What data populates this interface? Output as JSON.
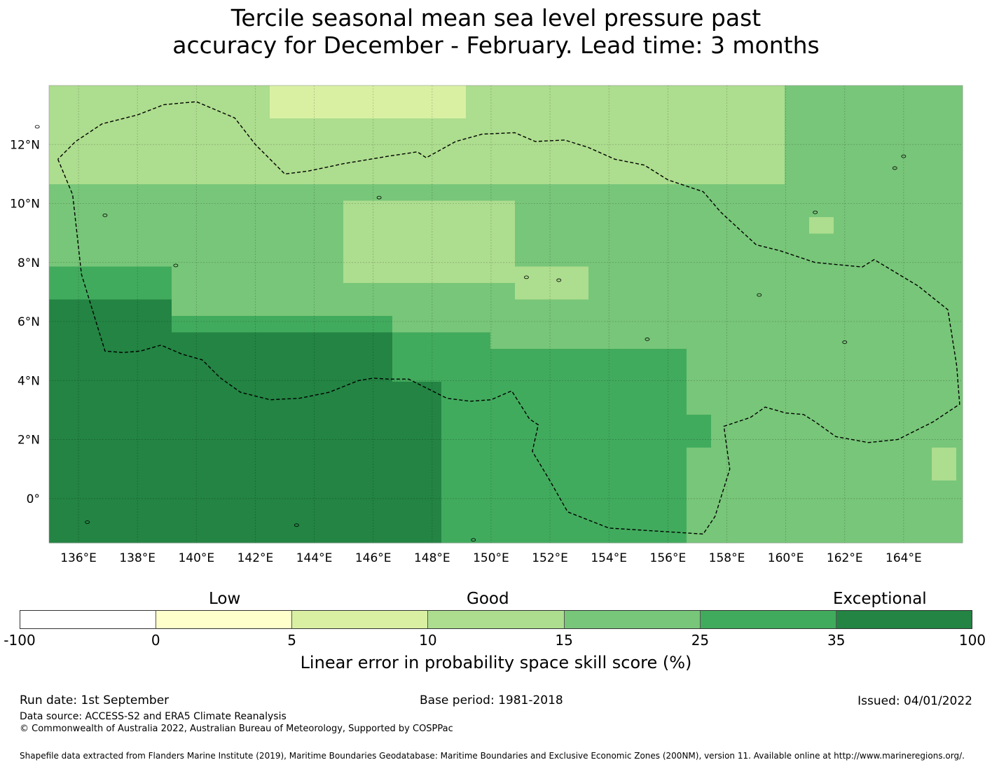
{
  "title": {
    "line1": "Tercile seasonal mean sea level pressure past",
    "line2": "accuracy for December - February. Lead time: 3 months"
  },
  "map": {
    "lon_range": [
      135,
      166
    ],
    "lat_range": [
      -1.5,
      14
    ],
    "x_tick_labels": [
      "136°E",
      "138°E",
      "140°E",
      "142°E",
      "144°E",
      "146°E",
      "148°E",
      "150°E",
      "152°E",
      "154°E",
      "156°E",
      "158°E",
      "160°E",
      "162°E",
      "164°E"
    ],
    "y_tick_labels": [
      "0°",
      "2°N",
      "4°N",
      "6°N",
      "8°N",
      "10°N",
      "12°N"
    ],
    "eez_boundary": [
      [
        135.3,
        11.5
      ],
      [
        135.8,
        10.3
      ],
      [
        136.1,
        7.6
      ],
      [
        136.9,
        5.0
      ],
      [
        137.5,
        4.95
      ],
      [
        138.1,
        5.0
      ],
      [
        138.8,
        5.2
      ],
      [
        139.5,
        4.9
      ],
      [
        140.2,
        4.7
      ],
      [
        140.8,
        4.1
      ],
      [
        141.5,
        3.6
      ],
      [
        142.5,
        3.35
      ],
      [
        143.5,
        3.4
      ],
      [
        144.5,
        3.6
      ],
      [
        145.5,
        4.0
      ],
      [
        146.0,
        4.08
      ],
      [
        146.5,
        4.05
      ],
      [
        147.2,
        4.05
      ],
      [
        147.8,
        3.75
      ],
      [
        148.5,
        3.4
      ],
      [
        149.3,
        3.3
      ],
      [
        150.0,
        3.35
      ],
      [
        150.7,
        3.65
      ],
      [
        151.3,
        2.7
      ],
      [
        151.6,
        2.5
      ],
      [
        151.4,
        1.6
      ],
      [
        152.0,
        0.6
      ],
      [
        152.6,
        -0.45
      ],
      [
        154.0,
        -1.0
      ],
      [
        157.2,
        -1.2
      ],
      [
        157.6,
        -0.6
      ],
      [
        158.1,
        1.0
      ],
      [
        157.9,
        2.45
      ],
      [
        158.8,
        2.75
      ],
      [
        159.3,
        3.1
      ],
      [
        160.0,
        2.9
      ],
      [
        160.6,
        2.85
      ],
      [
        161.0,
        2.6
      ],
      [
        161.7,
        2.1
      ],
      [
        162.8,
        1.9
      ],
      [
        163.8,
        2.0
      ],
      [
        165.0,
        2.6
      ],
      [
        165.9,
        3.2
      ],
      [
        165.8,
        4.5
      ],
      [
        165.5,
        6.4
      ],
      [
        164.5,
        7.2
      ],
      [
        163.0,
        8.1
      ],
      [
        162.6,
        7.85
      ],
      [
        161.0,
        8.0
      ],
      [
        159.8,
        8.4
      ],
      [
        159.0,
        8.6
      ],
      [
        157.8,
        9.7
      ],
      [
        157.2,
        10.4
      ],
      [
        156.0,
        10.8
      ],
      [
        155.2,
        11.3
      ],
      [
        154.2,
        11.5
      ],
      [
        153.3,
        11.9
      ],
      [
        152.5,
        12.15
      ],
      [
        151.5,
        12.1
      ],
      [
        150.8,
        12.4
      ],
      [
        149.7,
        12.35
      ],
      [
        148.8,
        12.1
      ],
      [
        147.8,
        11.55
      ],
      [
        147.5,
        11.75
      ],
      [
        146.5,
        11.6
      ],
      [
        145.0,
        11.35
      ],
      [
        143.8,
        11.1
      ],
      [
        143.0,
        11.0
      ],
      [
        142.7,
        11.3
      ],
      [
        142.0,
        12.0
      ],
      [
        141.3,
        12.9
      ],
      [
        140.0,
        13.45
      ],
      [
        138.9,
        13.35
      ],
      [
        138.0,
        13.0
      ],
      [
        136.8,
        12.7
      ],
      [
        135.9,
        12.1
      ],
      [
        135.3,
        11.5
      ]
    ]
  },
  "colorbar": {
    "header": {
      "low": "Low",
      "good": "Good",
      "exceptional": "Exceptional"
    },
    "colors": [
      "#ffffff",
      "#ffffcc",
      "#d9f0a3",
      "#addd8e",
      "#78c679",
      "#41ab5d",
      "#238443"
    ],
    "tick_labels": [
      "-100",
      "0",
      "5",
      "10",
      "15",
      "25",
      "35",
      "100"
    ],
    "label": "Linear error in probability space skill score (%)"
  },
  "footer": {
    "run_date": "Run date: 1st September",
    "base_period": "Base period: 1981-2018",
    "issued": "Issued: 04/01/2022",
    "data_source": "Data source: ACCESS-S2 and ERA5 Climate Reanalysis",
    "copyright": "© Commonwealth of Australia 2022, Australian Bureau of Meteorology, Supported by COSPPac",
    "shapefile": "Shapefile data extracted from Flanders Marine Institute (2019), Maritime Boundaries Geodatabase: Maritime Boundaries and Exclusive Economic Zones (200NM), version 11. Available online at http://www.marineregions.org/."
  }
}
